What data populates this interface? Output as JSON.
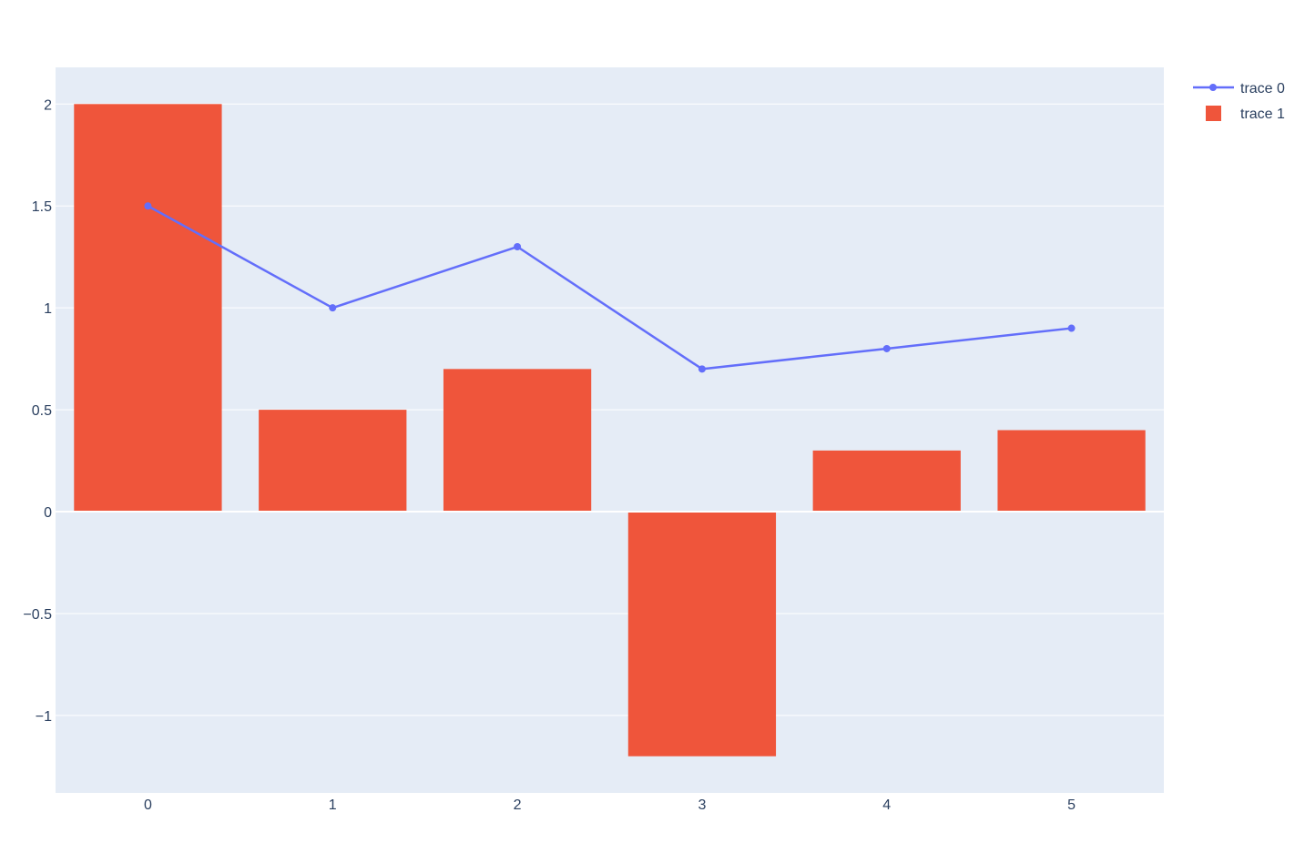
{
  "chart_data": {
    "type": "bar",
    "x": [
      0,
      1,
      2,
      3,
      4,
      5
    ],
    "x_tick_labels": [
      "0",
      "1",
      "2",
      "3",
      "4",
      "5"
    ],
    "y_tick_values": [
      -1,
      -0.5,
      0,
      0.5,
      1,
      1.5,
      2
    ],
    "y_tick_labels": [
      "−1",
      "−0.5",
      "0",
      "0.5",
      "1",
      "1.5",
      "2"
    ],
    "ylim": [
      -1.38,
      2.18
    ],
    "xlim": [
      -0.5,
      5.5
    ],
    "grid": true,
    "legend_position": "top-right",
    "background_color": "#e5ecf6",
    "series": [
      {
        "name": "trace 0",
        "type": "line",
        "mode": "lines+markers",
        "color": "#636efa",
        "values": [
          1.5,
          1.0,
          1.3,
          0.7,
          0.8,
          0.9
        ]
      },
      {
        "name": "trace 1",
        "type": "bar",
        "color": "#ef553b",
        "values": [
          2.0,
          0.5,
          0.7,
          -1.2,
          0.3,
          0.4
        ]
      }
    ]
  }
}
